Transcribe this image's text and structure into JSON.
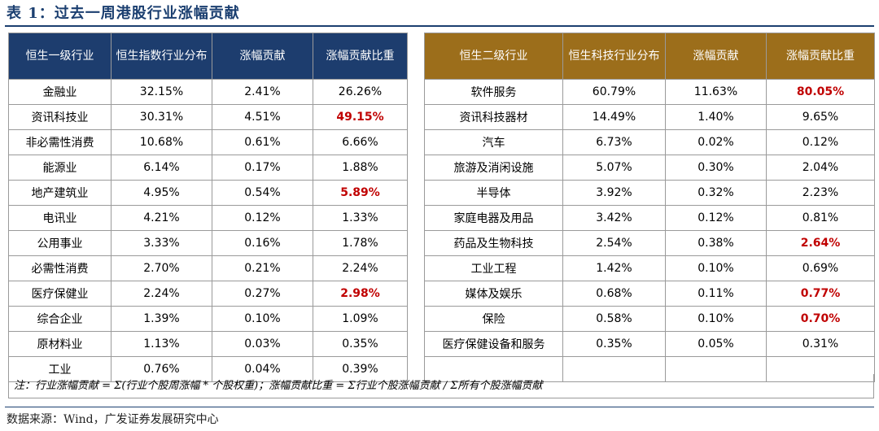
{
  "title": "表 1：过去一周港股行业涨幅贡献",
  "left_table": {
    "headers": [
      "恒生一级行业",
      "恒生指数行业分布",
      "涨幅贡献",
      "涨幅贡献比重"
    ],
    "rows": [
      {
        "name": "金融业",
        "dist": "32.15%",
        "contrib": "2.41%",
        "ratio": "26.26%",
        "highlight": false
      },
      {
        "name": "资讯科技业",
        "dist": "30.31%",
        "contrib": "4.51%",
        "ratio": "49.15%",
        "highlight": true
      },
      {
        "name": "非必需性消费",
        "dist": "10.68%",
        "contrib": "0.61%",
        "ratio": "6.66%",
        "highlight": false
      },
      {
        "name": "能源业",
        "dist": "6.14%",
        "contrib": "0.17%",
        "ratio": "1.88%",
        "highlight": false
      },
      {
        "name": "地产建筑业",
        "dist": "4.95%",
        "contrib": "0.54%",
        "ratio": "5.89%",
        "highlight": true
      },
      {
        "name": "电讯业",
        "dist": "4.21%",
        "contrib": "0.12%",
        "ratio": "1.33%",
        "highlight": false
      },
      {
        "name": "公用事业",
        "dist": "3.33%",
        "contrib": "0.16%",
        "ratio": "1.78%",
        "highlight": false
      },
      {
        "name": "必需性消费",
        "dist": "2.70%",
        "contrib": "0.21%",
        "ratio": "2.24%",
        "highlight": false
      },
      {
        "name": "医疗保健业",
        "dist": "2.24%",
        "contrib": "0.27%",
        "ratio": "2.98%",
        "highlight": true
      },
      {
        "name": "综合企业",
        "dist": "1.39%",
        "contrib": "0.10%",
        "ratio": "1.09%",
        "highlight": false
      },
      {
        "name": "原材料业",
        "dist": "1.13%",
        "contrib": "0.03%",
        "ratio": "0.35%",
        "highlight": false
      },
      {
        "name": "工业",
        "dist": "0.76%",
        "contrib": "0.04%",
        "ratio": "0.39%",
        "highlight": false
      }
    ]
  },
  "right_table": {
    "headers": [
      "恒生二级行业",
      "恒生科技行业分布",
      "涨幅贡献",
      "涨幅贡献比重"
    ],
    "rows": [
      {
        "name": "软件服务",
        "dist": "60.79%",
        "contrib": "11.63%",
        "ratio": "80.05%",
        "highlight": true
      },
      {
        "name": "资讯科技器材",
        "dist": "14.49%",
        "contrib": "1.40%",
        "ratio": "9.65%",
        "highlight": false
      },
      {
        "name": "汽车",
        "dist": "6.73%",
        "contrib": "0.02%",
        "ratio": "0.12%",
        "highlight": false
      },
      {
        "name": "旅游及消闲设施",
        "dist": "5.07%",
        "contrib": "0.30%",
        "ratio": "2.04%",
        "highlight": false
      },
      {
        "name": "半导体",
        "dist": "3.92%",
        "contrib": "0.32%",
        "ratio": "2.23%",
        "highlight": false
      },
      {
        "name": "家庭电器及用品",
        "dist": "3.42%",
        "contrib": "0.12%",
        "ratio": "0.81%",
        "highlight": false
      },
      {
        "name": "药品及生物科技",
        "dist": "2.54%",
        "contrib": "0.38%",
        "ratio": "2.64%",
        "highlight": true
      },
      {
        "name": "工业工程",
        "dist": "1.42%",
        "contrib": "0.10%",
        "ratio": "0.69%",
        "highlight": false
      },
      {
        "name": "媒体及娱乐",
        "dist": "0.68%",
        "contrib": "0.11%",
        "ratio": "0.77%",
        "highlight": true
      },
      {
        "name": "保险",
        "dist": "0.58%",
        "contrib": "0.10%",
        "ratio": "0.70%",
        "highlight": true
      },
      {
        "name": "医疗保健设备和服务",
        "dist": "0.35%",
        "contrib": "0.05%",
        "ratio": "0.31%",
        "highlight": false
      },
      {
        "name": "",
        "dist": "",
        "contrib": "",
        "ratio": "",
        "highlight": false
      }
    ]
  },
  "note": "注：行业涨幅贡献 = Σ(行业个股周涨幅 * 个股权重)；涨幅贡献比重 = Σ行业个股涨幅贡献 / Σ所有个股涨幅贡献",
  "source": "数据来源：Wind，广发证券发展研究中心",
  "colors": {
    "left_header": "#1d3d6e",
    "right_header": "#9c6e1b",
    "highlight": "#c00000"
  }
}
